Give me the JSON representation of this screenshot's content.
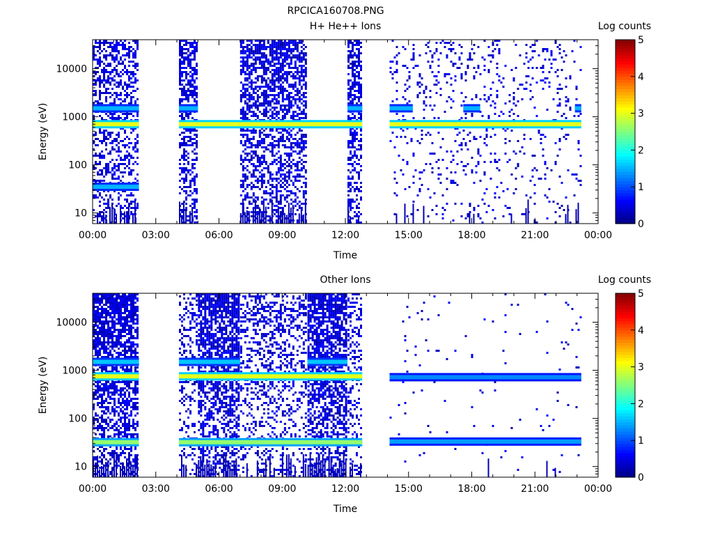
{
  "figure_title": "RPCICA160708.PNG",
  "colorscale": [
    "#00007f",
    "#0000ff",
    "#0080ff",
    "#00ffff",
    "#80ff80",
    "#ffff00",
    "#ff8000",
    "#ff0000",
    "#7f0000"
  ],
  "chart_data": [
    {
      "type": "heatmap",
      "title": "H+ He++ Ions",
      "xlabel": "Time",
      "ylabel": "Energy (eV)",
      "x_ticks": [
        "00:00",
        "03:00",
        "06:00",
        "09:00",
        "12:00",
        "15:00",
        "18:00",
        "21:00",
        "00:00"
      ],
      "xlim_hours": [
        0,
        24
      ],
      "y_scale": "log",
      "ylim": [
        6,
        40000
      ],
      "y_ticks": [
        "10",
        "100",
        "1000",
        "10000"
      ],
      "colorbar": {
        "label": "Log counts",
        "range": [
          0,
          5
        ],
        "ticks": [
          "0",
          "1",
          "2",
          "3",
          "4",
          "5"
        ]
      },
      "data_segments_hours": [
        [
          0.0,
          2.2
        ],
        [
          4.1,
          5.0
        ],
        [
          7.0,
          10.2
        ],
        [
          12.1,
          12.8
        ],
        [
          14.1,
          23.2
        ]
      ],
      "noise_density": [
        0.55,
        0.7,
        0.72,
        0.7,
        0.12
      ],
      "bands": [
        {
          "energy_eV": 700,
          "log_counts": 3.0,
          "segments_hours": [
            [
              0.0,
              2.2
            ],
            [
              4.1,
              5.0
            ],
            [
              5.0,
              7.0
            ],
            [
              7.0,
              10.2
            ],
            [
              10.2,
              12.1
            ],
            [
              12.1,
              12.8
            ],
            [
              14.1,
              23.2
            ]
          ]
        },
        {
          "energy_eV": 1500,
          "log_counts": 1.5,
          "segments_hours": [
            [
              0.0,
              2.2
            ],
            [
              4.1,
              5.0
            ],
            [
              12.1,
              12.8
            ],
            [
              14.1,
              15.2
            ],
            [
              17.6,
              18.4
            ],
            [
              22.9,
              23.2
            ]
          ]
        },
        {
          "energy_eV": 35,
          "log_counts": 1.5,
          "segments_hours": [
            [
              0.0,
              2.2
            ]
          ]
        }
      ]
    },
    {
      "type": "heatmap",
      "title": "Other Ions",
      "xlabel": "Time",
      "ylabel": "Energy (eV)",
      "x_ticks": [
        "00:00",
        "03:00",
        "06:00",
        "09:00",
        "12:00",
        "15:00",
        "18:00",
        "21:00",
        "00:00"
      ],
      "xlim_hours": [
        0,
        24
      ],
      "y_scale": "log",
      "ylim": [
        6,
        40000
      ],
      "y_ticks": [
        "10",
        "100",
        "1000",
        "10000"
      ],
      "colorbar": {
        "label": "Log counts",
        "range": [
          0,
          5
        ],
        "ticks": [
          "0",
          "1",
          "2",
          "3",
          "4",
          "5"
        ]
      },
      "data_segments_hours": [
        [
          0.0,
          2.2
        ],
        [
          4.1,
          5.0
        ],
        [
          5.0,
          7.0
        ],
        [
          7.0,
          10.2
        ],
        [
          10.2,
          12.1
        ],
        [
          12.1,
          12.8
        ],
        [
          14.1,
          23.2
        ]
      ],
      "noise_density": [
        0.85,
        0.35,
        0.85,
        0.4,
        0.85,
        0.35,
        0.02
      ],
      "bands": [
        {
          "energy_eV": 750,
          "log_counts": 3.0,
          "segments_hours": [
            [
              0.0,
              2.2
            ],
            [
              4.1,
              5.0
            ],
            [
              5.0,
              7.0
            ],
            [
              7.0,
              10.2
            ],
            [
              10.2,
              12.1
            ],
            [
              12.1,
              12.8
            ]
          ]
        },
        {
          "energy_eV": 720,
          "log_counts": 1.3,
          "segments_hours": [
            [
              14.1,
              23.2
            ]
          ]
        },
        {
          "energy_eV": 1500,
          "log_counts": 1.6,
          "segments_hours": [
            [
              0.0,
              2.2
            ],
            [
              4.1,
              5.0
            ],
            [
              5.0,
              7.0
            ],
            [
              10.2,
              12.1
            ]
          ]
        },
        {
          "energy_eV": 32,
          "log_counts": 2.6,
          "segments_hours": [
            [
              0.0,
              2.2
            ],
            [
              4.1,
              12.8
            ]
          ]
        },
        {
          "energy_eV": 33,
          "log_counts": 1.4,
          "segments_hours": [
            [
              14.1,
              23.2
            ]
          ]
        }
      ]
    }
  ]
}
